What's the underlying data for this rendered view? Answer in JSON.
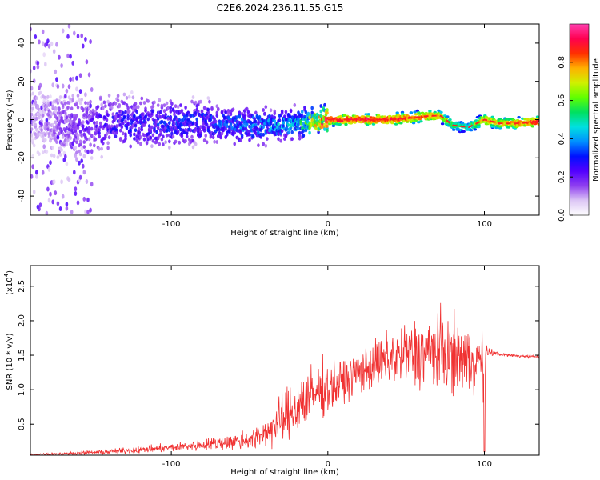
{
  "title": "C2E6.2024.236.11.55.G15",
  "chart_data": [
    {
      "type": "heatmap",
      "xlabel": "Height of straight line (km)",
      "ylabel": "Frequency (Hz)",
      "xlim": [
        -190,
        135
      ],
      "ylim": [
        -50,
        50
      ],
      "xticks": [
        -100,
        0,
        100
      ],
      "yticks": [
        -40,
        -20,
        0,
        20,
        40
      ],
      "colorbar": {
        "label": "Normalized spectral amplitude",
        "range": [
          0,
          1
        ],
        "ticks": [
          0.0,
          0.2,
          0.4,
          0.6,
          0.8
        ],
        "colormap": [
          "#ffffff",
          "#dcc6f5",
          "#8f3ff0",
          "#5200ff",
          "#0010ff",
          "#0090ff",
          "#00e0e0",
          "#00e060",
          "#60ff00",
          "#d0f000",
          "#ffb000",
          "#ff3000",
          "#ff0050",
          "#ff40b0"
        ]
      },
      "ridge": {
        "x": [
          -190,
          -160,
          -130,
          -100,
          -80,
          -60,
          -40,
          -20,
          0,
          20,
          40,
          55,
          65,
          72,
          80,
          90,
          100,
          110,
          120,
          135
        ],
        "freq": [
          0,
          -3,
          -2,
          -2,
          -1,
          -3,
          -3,
          -2,
          0,
          0,
          0,
          1,
          2,
          2,
          -3,
          -4,
          0,
          -2,
          -2,
          -1
        ],
        "peak_amplitude": [
          0.1,
          0.2,
          0.28,
          0.3,
          0.32,
          0.35,
          0.4,
          0.45,
          0.95,
          0.97,
          0.95,
          0.9,
          0.85,
          0.8,
          0.6,
          0.55,
          0.85,
          0.8,
          0.85,
          0.95
        ]
      }
    },
    {
      "type": "line",
      "xlabel": "Height of straight line (km)",
      "ylabel": "SNR (10 * v/v)",
      "scale_label": "(x10",
      "scale_exponent": "4",
      "xlim": [
        -190,
        135
      ],
      "ylim": [
        0.05,
        2.8
      ],
      "xticks": [
        -100,
        0,
        100
      ],
      "yticks": [
        0.5,
        1.0,
        1.5,
        2.0,
        2.5
      ],
      "ytick_labels": [
        "0.5",
        "1.0",
        "1.5",
        "2.0",
        "2.5"
      ],
      "color": "#f03232",
      "series": [
        {
          "x": [
            -190,
            -160,
            -140,
            -120,
            -100,
            -80,
            -60,
            -45,
            -35,
            -30,
            -25,
            -20,
            -15,
            -10,
            -5,
            0,
            5,
            10,
            15,
            20,
            30,
            40,
            50,
            60,
            70,
            80,
            90,
            95,
            99,
            100,
            101,
            103,
            110,
            120,
            135
          ],
          "mean": [
            0.06,
            0.08,
            0.1,
            0.13,
            0.16,
            0.2,
            0.25,
            0.3,
            0.45,
            0.55,
            0.65,
            0.75,
            0.85,
            0.9,
            1.0,
            1.05,
            1.05,
            1.1,
            1.2,
            1.25,
            1.35,
            1.45,
            1.5,
            1.55,
            1.55,
            1.5,
            1.45,
            1.45,
            1.4,
            0.6,
            1.55,
            1.55,
            1.51,
            1.49,
            1.48
          ],
          "spread": [
            0.01,
            0.02,
            0.03,
            0.04,
            0.05,
            0.07,
            0.1,
            0.15,
            0.22,
            0.3,
            0.35,
            0.35,
            0.38,
            0.38,
            0.35,
            0.3,
            0.3,
            0.3,
            0.25,
            0.25,
            0.3,
            0.35,
            0.4,
            0.45,
            0.5,
            0.45,
            0.4,
            0.4,
            0.35,
            0.5,
            0.1,
            0.05,
            0.02,
            0.02,
            0.02
          ]
        }
      ]
    }
  ]
}
